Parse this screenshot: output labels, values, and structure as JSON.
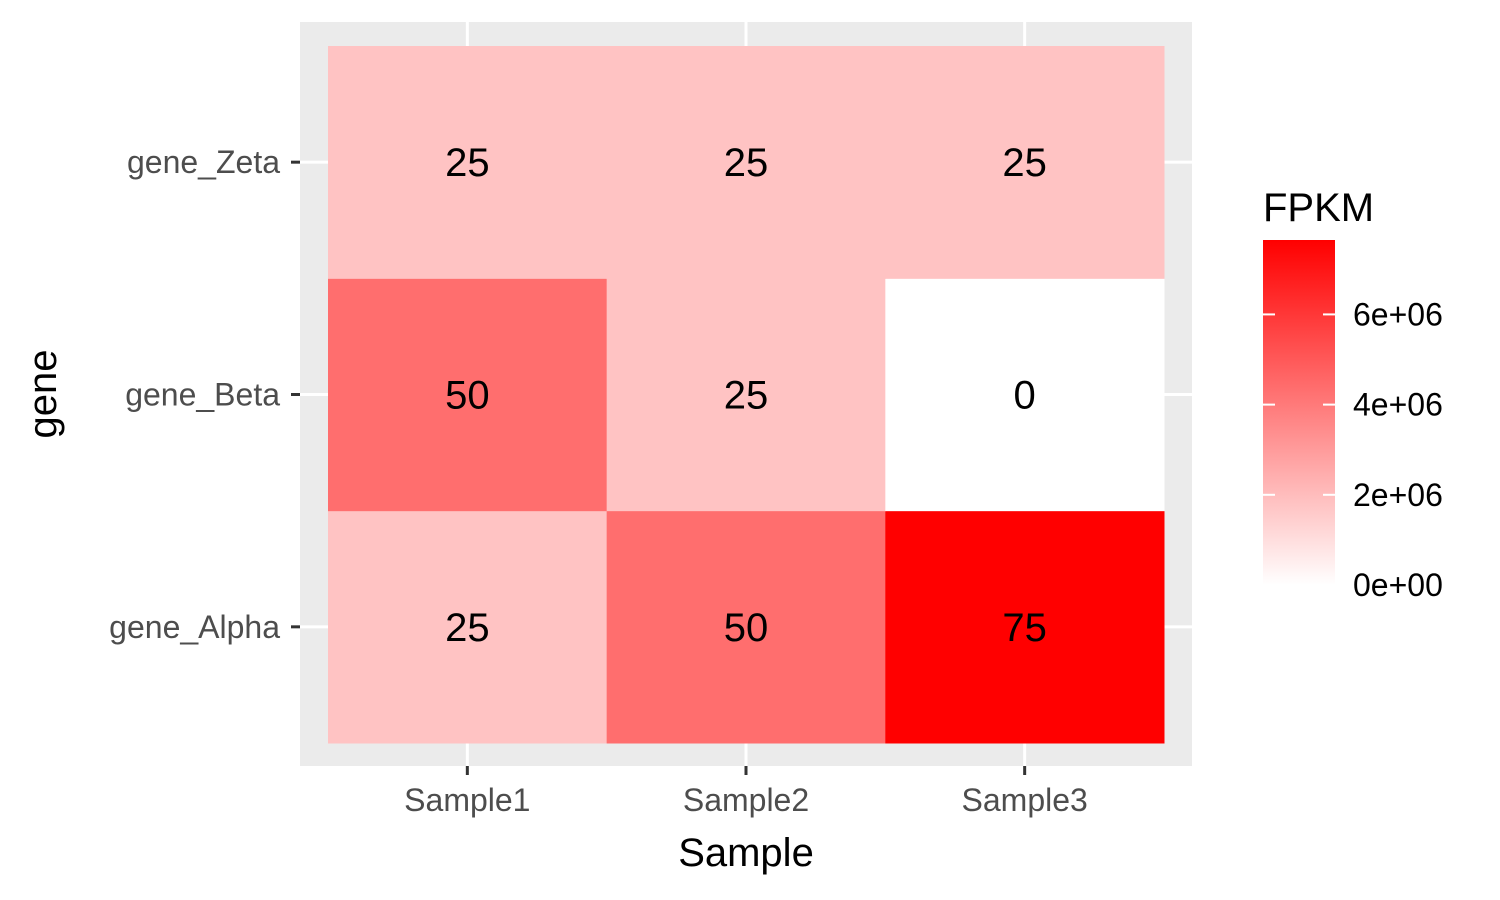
{
  "chart_data": {
    "type": "heatmap",
    "xlabel": "Sample",
    "ylabel": "gene",
    "x_categories": [
      "Sample1",
      "Sample2",
      "Sample3"
    ],
    "y_categories": [
      "gene_Alpha",
      "gene_Beta",
      "gene_Zeta"
    ],
    "cells": [
      {
        "x": "Sample1",
        "y": "gene_Alpha",
        "label": "25",
        "fill": 1800000
      },
      {
        "x": "Sample2",
        "y": "gene_Alpha",
        "label": "50",
        "fill": 4350000
      },
      {
        "x": "Sample3",
        "y": "gene_Alpha",
        "label": "75",
        "fill": 7650000
      },
      {
        "x": "Sample1",
        "y": "gene_Beta",
        "label": "50",
        "fill": 4350000
      },
      {
        "x": "Sample2",
        "y": "gene_Beta",
        "label": "25",
        "fill": 1800000
      },
      {
        "x": "Sample3",
        "y": "gene_Beta",
        "label": "0",
        "fill": 0
      },
      {
        "x": "Sample1",
        "y": "gene_Zeta",
        "label": "25",
        "fill": 1800000
      },
      {
        "x": "Sample2",
        "y": "gene_Zeta",
        "label": "25",
        "fill": 1800000
      },
      {
        "x": "Sample3",
        "y": "gene_Zeta",
        "label": "25",
        "fill": 1800000
      }
    ],
    "legend": {
      "title": "FPKM",
      "placement": "right",
      "range": [
        0,
        7650000
      ],
      "breaks": [
        {
          "value": 0,
          "label": "0e+00"
        },
        {
          "value": 2000000,
          "label": "2e+06"
        },
        {
          "value": 4000000,
          "label": "4e+06"
        },
        {
          "value": 6000000,
          "label": "6e+06"
        }
      ],
      "low_color": "#ffffff",
      "high_color": "#ff0000"
    },
    "grid": true,
    "panel_background": "#ebebeb"
  }
}
